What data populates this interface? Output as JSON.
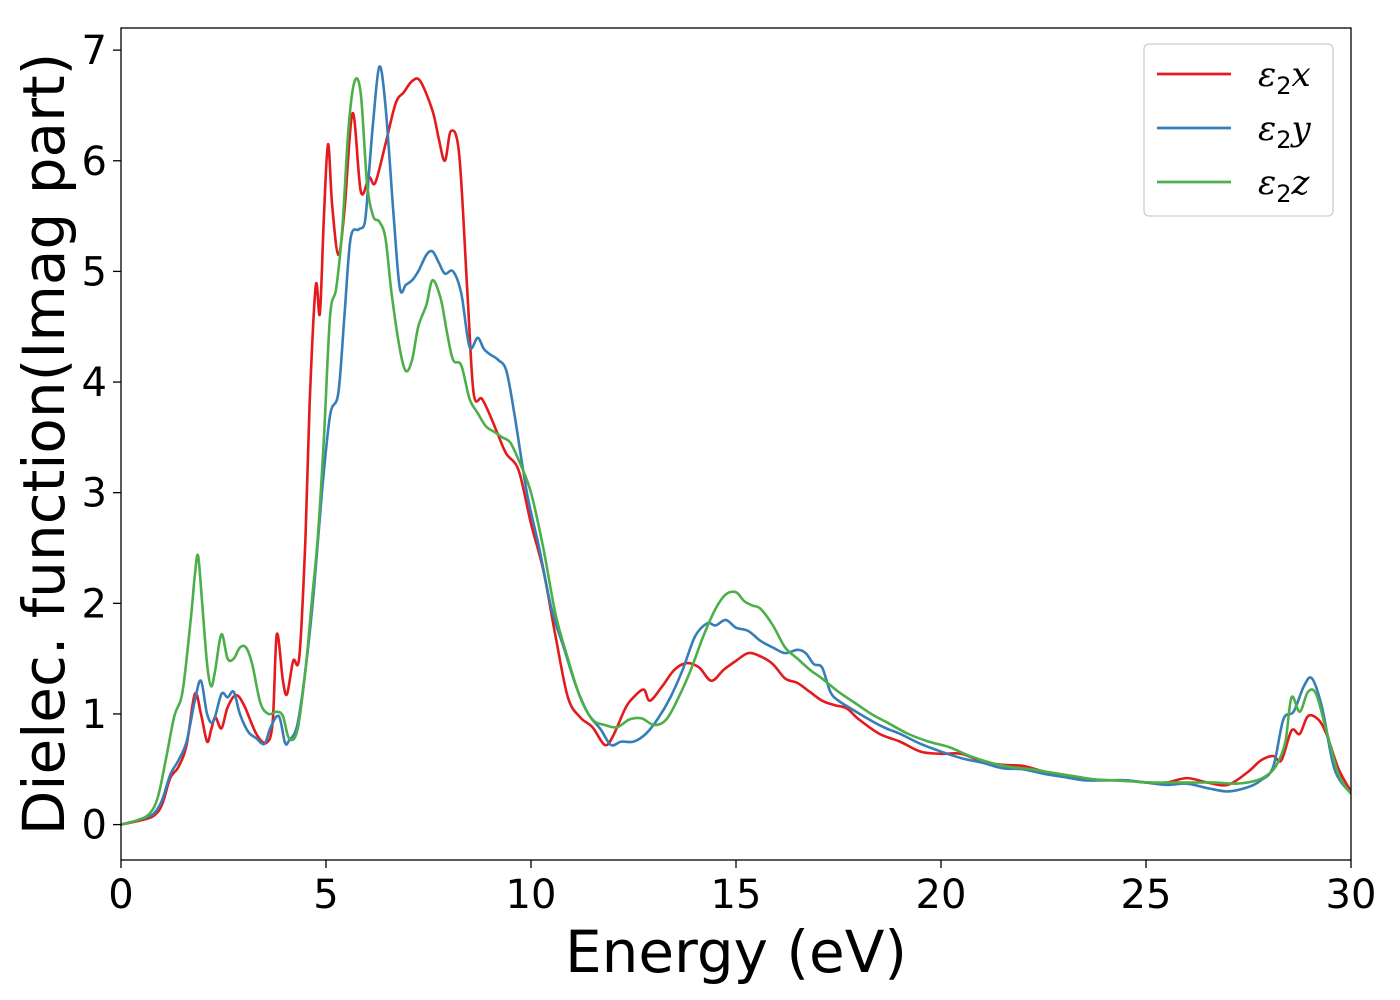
{
  "chart_data": {
    "type": "line",
    "title": "",
    "xlabel": "Energy (eV)",
    "ylabel": "Dielec. function(Imag part)",
    "xlim": [
      0,
      30
    ],
    "ylim": [
      -0.32,
      7.2
    ],
    "xticks": [
      0,
      5,
      10,
      15,
      20,
      25,
      30
    ],
    "yticks": [
      0,
      1,
      2,
      3,
      4,
      5,
      6,
      7
    ],
    "grid": false,
    "legend_position": "top-right",
    "series": [
      {
        "name": "ε2x",
        "legend_base": "ε",
        "legend_sub": "2",
        "legend_suffix": "x",
        "color": "#e41a1c",
        "x": [
          0,
          0.5,
          0.8,
          1.0,
          1.2,
          1.4,
          1.6,
          1.8,
          1.95,
          2.1,
          2.2,
          2.3,
          2.45,
          2.6,
          2.8,
          3.0,
          3.3,
          3.55,
          3.7,
          3.8,
          3.95,
          4.05,
          4.2,
          4.35,
          4.5,
          4.6,
          4.75,
          4.85,
          4.95,
          5.05,
          5.15,
          5.3,
          5.45,
          5.65,
          5.85,
          6.05,
          6.2,
          6.45,
          6.7,
          6.9,
          7.1,
          7.3,
          7.6,
          7.75,
          7.9,
          8.05,
          8.25,
          8.45,
          8.6,
          8.8,
          9.0,
          9.2,
          9.4,
          9.7,
          10.0,
          10.3,
          10.6,
          10.9,
          11.2,
          11.5,
          11.8,
          12.0,
          12.3,
          12.5,
          12.75,
          12.9,
          13.2,
          13.5,
          13.8,
          14.1,
          14.4,
          14.7,
          15.0,
          15.3,
          15.6,
          15.9,
          16.2,
          16.5,
          16.8,
          17.1,
          17.4,
          17.7,
          18.0,
          18.5,
          19.0,
          19.5,
          20.0,
          20.5,
          21.0,
          21.5,
          22.0,
          22.5,
          23.0,
          23.5,
          24.0,
          24.5,
          25.0,
          25.5,
          26.0,
          26.5,
          27.0,
          27.5,
          27.8,
          28.1,
          28.3,
          28.55,
          28.75,
          28.95,
          29.2,
          29.4,
          29.7,
          30.0
        ],
        "y": [
          0,
          0.04,
          0.08,
          0.18,
          0.42,
          0.52,
          0.72,
          1.18,
          1.0,
          0.75,
          0.86,
          0.97,
          0.87,
          1.06,
          1.17,
          1.08,
          0.82,
          0.74,
          0.93,
          1.72,
          1.3,
          1.18,
          1.48,
          1.52,
          2.6,
          3.8,
          4.87,
          4.62,
          5.5,
          6.15,
          5.6,
          5.15,
          5.55,
          6.43,
          5.72,
          5.85,
          5.8,
          6.15,
          6.52,
          6.62,
          6.72,
          6.72,
          6.45,
          6.2,
          6.0,
          6.27,
          6.05,
          4.8,
          3.9,
          3.85,
          3.7,
          3.52,
          3.35,
          3.2,
          2.72,
          2.3,
          1.7,
          1.15,
          0.97,
          0.88,
          0.72,
          0.8,
          1.05,
          1.15,
          1.22,
          1.12,
          1.25,
          1.4,
          1.46,
          1.42,
          1.3,
          1.4,
          1.48,
          1.55,
          1.52,
          1.45,
          1.32,
          1.28,
          1.2,
          1.12,
          1.08,
          1.05,
          0.95,
          0.82,
          0.75,
          0.66,
          0.64,
          0.64,
          0.57,
          0.54,
          0.53,
          0.48,
          0.44,
          0.41,
          0.4,
          0.4,
          0.38,
          0.38,
          0.42,
          0.38,
          0.36,
          0.48,
          0.58,
          0.62,
          0.58,
          0.85,
          0.82,
          0.98,
          0.95,
          0.82,
          0.5,
          0.3
        ]
      },
      {
        "name": "ε2y",
        "legend_base": "ε",
        "legend_sub": "2",
        "legend_suffix": "y",
        "color": "#377eb8",
        "x": [
          0,
          0.5,
          0.8,
          1.0,
          1.2,
          1.4,
          1.6,
          1.8,
          1.95,
          2.1,
          2.25,
          2.45,
          2.6,
          2.75,
          2.9,
          3.1,
          3.3,
          3.5,
          3.65,
          3.85,
          4.0,
          4.1,
          4.3,
          4.5,
          4.7,
          4.9,
          5.1,
          5.3,
          5.45,
          5.6,
          5.8,
          5.95,
          6.05,
          6.15,
          6.3,
          6.45,
          6.65,
          6.8,
          6.95,
          7.1,
          7.25,
          7.45,
          7.6,
          7.75,
          7.9,
          8.1,
          8.3,
          8.5,
          8.7,
          8.85,
          9.0,
          9.2,
          9.4,
          9.6,
          9.9,
          10.2,
          10.5,
          10.8,
          11.1,
          11.4,
          11.7,
          11.95,
          12.2,
          12.5,
          12.8,
          13.1,
          13.4,
          13.7,
          14.0,
          14.3,
          14.5,
          14.75,
          15.0,
          15.3,
          15.6,
          15.9,
          16.2,
          16.5,
          16.7,
          16.9,
          17.1,
          17.3,
          17.5,
          17.8,
          18.2,
          18.6,
          19.0,
          19.5,
          20.0,
          20.5,
          21.0,
          21.5,
          22.0,
          22.5,
          23.0,
          23.5,
          24.0,
          24.5,
          25.0,
          25.5,
          26.0,
          26.5,
          27.0,
          27.5,
          27.8,
          28.1,
          28.35,
          28.6,
          28.85,
          29.05,
          29.3,
          29.6,
          30.0
        ],
        "y": [
          0,
          0.05,
          0.1,
          0.22,
          0.45,
          0.58,
          0.75,
          1.12,
          1.3,
          1.0,
          0.93,
          1.18,
          1.15,
          1.2,
          1.0,
          0.84,
          0.78,
          0.73,
          0.88,
          0.98,
          0.74,
          0.76,
          0.9,
          1.4,
          2.1,
          3.0,
          3.7,
          3.9,
          4.6,
          5.3,
          5.38,
          5.45,
          5.9,
          6.35,
          6.85,
          6.5,
          5.5,
          4.85,
          4.88,
          4.92,
          5.0,
          5.15,
          5.18,
          5.08,
          4.98,
          5.0,
          4.8,
          4.32,
          4.4,
          4.3,
          4.25,
          4.2,
          4.1,
          3.7,
          3.0,
          2.5,
          1.95,
          1.6,
          1.25,
          1.0,
          0.86,
          0.72,
          0.75,
          0.75,
          0.82,
          0.96,
          1.15,
          1.4,
          1.7,
          1.82,
          1.8,
          1.85,
          1.78,
          1.75,
          1.66,
          1.6,
          1.55,
          1.58,
          1.55,
          1.45,
          1.42,
          1.2,
          1.12,
          1.05,
          0.96,
          0.88,
          0.82,
          0.73,
          0.66,
          0.6,
          0.56,
          0.51,
          0.5,
          0.46,
          0.43,
          0.4,
          0.4,
          0.4,
          0.38,
          0.36,
          0.37,
          0.33,
          0.3,
          0.34,
          0.4,
          0.52,
          0.95,
          1.02,
          1.25,
          1.32,
          1.05,
          0.5,
          0.28
        ]
      },
      {
        "name": "ε2z",
        "legend_base": "ε",
        "legend_sub": "2",
        "legend_suffix": "z",
        "color": "#4daf4a",
        "x": [
          0,
          0.4,
          0.7,
          0.9,
          1.1,
          1.3,
          1.5,
          1.7,
          1.8,
          1.88,
          1.98,
          2.1,
          2.2,
          2.3,
          2.45,
          2.6,
          2.75,
          2.9,
          3.05,
          3.2,
          3.4,
          3.6,
          3.8,
          3.95,
          4.1,
          4.3,
          4.5,
          4.65,
          4.8,
          4.95,
          5.1,
          5.25,
          5.4,
          5.55,
          5.7,
          5.85,
          6.0,
          6.15,
          6.3,
          6.45,
          6.6,
          6.8,
          6.95,
          7.1,
          7.25,
          7.45,
          7.6,
          7.8,
          7.95,
          8.1,
          8.3,
          8.5,
          8.7,
          8.9,
          9.1,
          9.3,
          9.5,
          9.75,
          10.0,
          10.3,
          10.6,
          10.9,
          11.2,
          11.5,
          11.8,
          12.1,
          12.4,
          12.7,
          13.0,
          13.3,
          13.6,
          13.9,
          14.2,
          14.5,
          14.75,
          15.0,
          15.2,
          15.4,
          15.6,
          15.9,
          16.2,
          16.5,
          16.8,
          17.1,
          17.5,
          17.9,
          18.3,
          18.7,
          19.2,
          19.7,
          20.2,
          20.7,
          21.2,
          21.7,
          22.2,
          22.7,
          23.2,
          23.7,
          24.2,
          24.7,
          25.2,
          25.7,
          26.2,
          26.7,
          27.2,
          27.7,
          28.0,
          28.2,
          28.4,
          28.55,
          28.75,
          28.95,
          29.15,
          29.4,
          29.7,
          30.0
        ],
        "y": [
          0,
          0.04,
          0.1,
          0.25,
          0.6,
          0.98,
          1.2,
          1.85,
          2.25,
          2.43,
          2.0,
          1.45,
          1.25,
          1.4,
          1.72,
          1.5,
          1.5,
          1.6,
          1.6,
          1.45,
          1.1,
          1.0,
          1.02,
          0.98,
          0.78,
          0.85,
          1.4,
          2.0,
          2.6,
          3.5,
          4.6,
          4.85,
          5.4,
          6.3,
          6.72,
          6.6,
          5.8,
          5.5,
          5.45,
          5.3,
          4.8,
          4.3,
          4.1,
          4.2,
          4.5,
          4.7,
          4.92,
          4.75,
          4.45,
          4.2,
          4.15,
          3.85,
          3.72,
          3.6,
          3.55,
          3.5,
          3.45,
          3.25,
          3.0,
          2.5,
          1.9,
          1.5,
          1.15,
          0.95,
          0.9,
          0.88,
          0.95,
          0.96,
          0.9,
          0.95,
          1.15,
          1.4,
          1.7,
          1.95,
          2.08,
          2.1,
          2.02,
          1.98,
          1.95,
          1.8,
          1.6,
          1.5,
          1.4,
          1.32,
          1.2,
          1.1,
          1.0,
          0.92,
          0.82,
          0.75,
          0.7,
          0.62,
          0.56,
          0.52,
          0.5,
          0.47,
          0.44,
          0.41,
          0.4,
          0.39,
          0.38,
          0.38,
          0.38,
          0.38,
          0.37,
          0.4,
          0.46,
          0.55,
          0.75,
          1.15,
          1.02,
          1.2,
          1.18,
          0.85,
          0.45,
          0.28
        ]
      }
    ]
  }
}
